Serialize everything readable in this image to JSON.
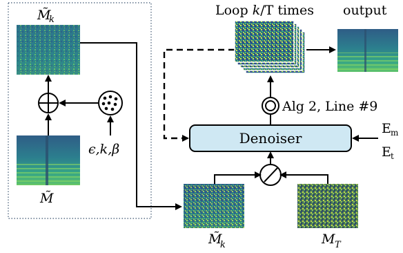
{
  "labels": {
    "top_left_spec": "M̃",
    "top_left_sub": "k",
    "bottom_left_spec": "M̃",
    "noise_params": "ϵ,k,β",
    "loop_prefix": "Loop ",
    "loop_k": "k",
    "loop_suffix": "/T times",
    "output": "output",
    "alg_ref": "Alg 2, Line #9",
    "denoiser": "Denoiser",
    "cond_e_m": "E",
    "cond_e_m_sub": "m",
    "cond_e_t": "E",
    "cond_e_t_sub": "t",
    "noisy_spec": "M̃",
    "noisy_spec_sub": "k",
    "noise_spec": "M",
    "noise_spec_sub": "T"
  },
  "colors": {
    "denoiser_fill": "#cfe8f3",
    "spec_dark": "#2f5d86",
    "spec_teal": "#2a8f8a",
    "spec_green": "#6cc46a",
    "spec_yellow": "#d9e44a",
    "dashed_box": "#5a6f86"
  },
  "icons": {
    "sum": "circle-plus-icon",
    "noise_source": "dots-circle-icon",
    "combine": "circle-slash-icon",
    "algorithm": "double-circle-icon"
  }
}
